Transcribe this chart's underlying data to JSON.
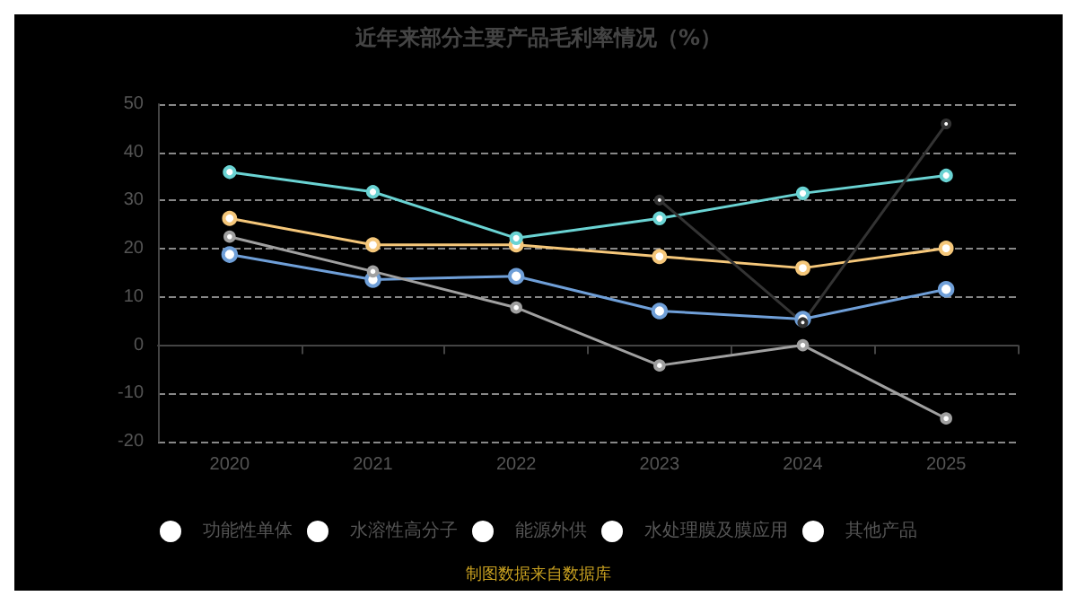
{
  "chart_data": {
    "type": "line",
    "title": "近年来部分主要产品毛利率情况（%）",
    "categories": [
      "2020",
      "2021",
      "2022",
      "2023",
      "2024",
      "2025"
    ],
    "series": [
      {
        "name": "功能性单体",
        "color": "#6f9fd8",
        "values": [
          18.8,
          13.6,
          14.3,
          7.1,
          5.4,
          11.6
        ]
      },
      {
        "name": "水溶性高分子",
        "color": "#f5c77a",
        "values": [
          26.3,
          20.8,
          20.8,
          18.4,
          16.0,
          20.1
        ]
      },
      {
        "name": "能源外供",
        "color": "#6ad3d3",
        "values": [
          35.9,
          31.8,
          22.2,
          26.3,
          31.5,
          35.2
        ]
      },
      {
        "name": "水处理膜及膜应用",
        "color": "#a0a0a0",
        "values": [
          22.5,
          15.3,
          7.8,
          -4.2,
          0,
          -15.2
        ]
      },
      {
        "name": "其他产品",
        "color": "#333333",
        "values": [
          null,
          null,
          null,
          30.1,
          4.7,
          45.9
        ]
      }
    ],
    "ylim": [
      -20,
      50
    ],
    "yticks": [
      -20,
      -10,
      0,
      10,
      20,
      30,
      40,
      50
    ],
    "grid": "y",
    "legend": "bottom",
    "marker": "circle",
    "line_style": "solid",
    "annotations": [
      "制图数据来自数据库"
    ]
  }
}
